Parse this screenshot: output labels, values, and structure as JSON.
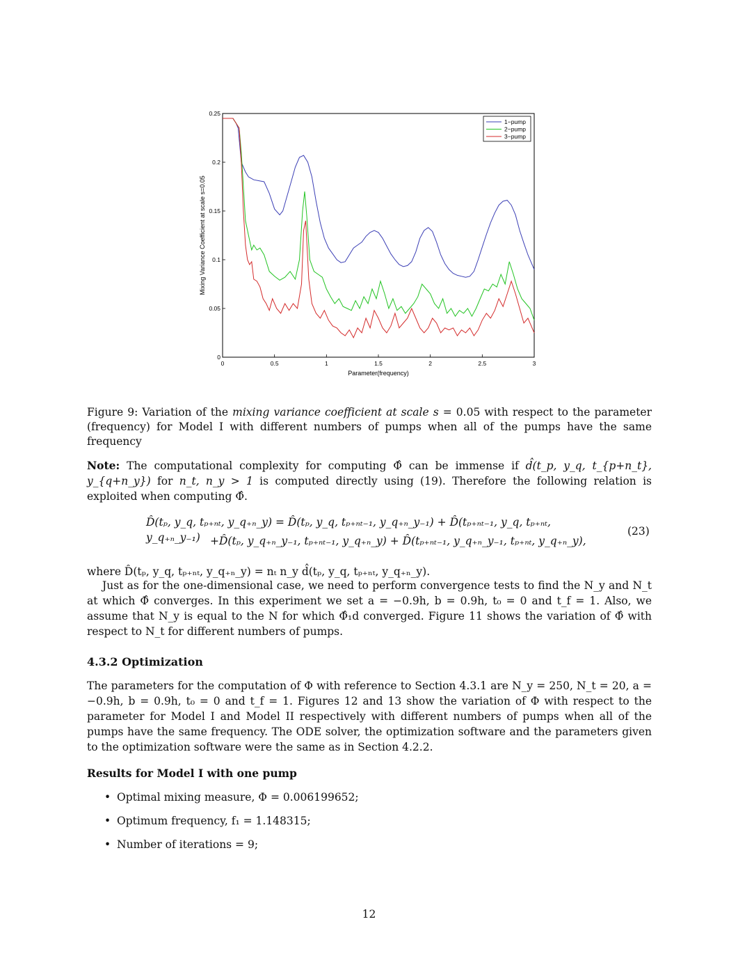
{
  "chart_data": {
    "type": "line",
    "title": "",
    "xlabel": "Parameter(frequency)",
    "ylabel": "Mixing Variance Coefficient at scale s=0.05",
    "xlim": [
      0,
      3
    ],
    "ylim": [
      0,
      0.25
    ],
    "xticks": [
      0,
      0.5,
      1,
      1.5,
      2,
      2.5,
      3
    ],
    "xtick_labels": [
      "0",
      "0.5",
      "1",
      "1.5",
      "2",
      "2.5",
      "3"
    ],
    "yticks": [
      0,
      0.05,
      0.1,
      0.15,
      0.2,
      0.25
    ],
    "ytick_labels": [
      "0",
      "0.05",
      "0.1",
      "0.15",
      "0.2",
      "0.25"
    ],
    "grid": false,
    "legend": "top-right",
    "series": [
      {
        "name": "1−pump",
        "color": "#3b3fb5",
        "x": [
          0,
          0.1,
          0.13,
          0.15,
          0.18,
          0.22,
          0.25,
          0.3,
          0.35,
          0.4,
          0.45,
          0.5,
          0.55,
          0.58,
          0.62,
          0.66,
          0.7,
          0.74,
          0.78,
          0.82,
          0.86,
          0.9,
          0.94,
          0.98,
          1.02,
          1.06,
          1.1,
          1.14,
          1.18,
          1.22,
          1.26,
          1.3,
          1.34,
          1.38,
          1.42,
          1.46,
          1.5,
          1.54,
          1.58,
          1.62,
          1.66,
          1.7,
          1.74,
          1.78,
          1.82,
          1.86,
          1.9,
          1.94,
          1.98,
          2.02,
          2.06,
          2.1,
          2.14,
          2.18,
          2.22,
          2.26,
          2.3,
          2.34,
          2.38,
          2.42,
          2.46,
          2.5,
          2.54,
          2.58,
          2.62,
          2.66,
          2.7,
          2.74,
          2.78,
          2.82,
          2.86,
          2.9,
          2.94,
          2.98,
          3.0
        ],
        "y": [
          0.245,
          0.245,
          0.24,
          0.235,
          0.2,
          0.19,
          0.185,
          0.182,
          0.181,
          0.18,
          0.168,
          0.152,
          0.146,
          0.15,
          0.165,
          0.18,
          0.195,
          0.205,
          0.207,
          0.2,
          0.185,
          0.16,
          0.138,
          0.122,
          0.112,
          0.106,
          0.1,
          0.097,
          0.098,
          0.105,
          0.112,
          0.115,
          0.118,
          0.124,
          0.128,
          0.13,
          0.128,
          0.122,
          0.114,
          0.106,
          0.1,
          0.095,
          0.093,
          0.094,
          0.098,
          0.108,
          0.122,
          0.13,
          0.133,
          0.129,
          0.118,
          0.105,
          0.096,
          0.09,
          0.086,
          0.084,
          0.083,
          0.082,
          0.083,
          0.088,
          0.1,
          0.113,
          0.126,
          0.138,
          0.148,
          0.156,
          0.16,
          0.161,
          0.156,
          0.146,
          0.13,
          0.117,
          0.105,
          0.095,
          0.09
        ]
      },
      {
        "name": "2−pump",
        "color": "#22c322",
        "x": [
          0,
          0.1,
          0.13,
          0.16,
          0.18,
          0.2,
          0.22,
          0.25,
          0.28,
          0.3,
          0.33,
          0.36,
          0.4,
          0.45,
          0.5,
          0.55,
          0.6,
          0.65,
          0.7,
          0.74,
          0.77,
          0.79,
          0.81,
          0.84,
          0.88,
          0.92,
          0.96,
          1.0,
          1.04,
          1.08,
          1.12,
          1.16,
          1.2,
          1.24,
          1.28,
          1.32,
          1.36,
          1.4,
          1.44,
          1.48,
          1.52,
          1.56,
          1.6,
          1.64,
          1.68,
          1.72,
          1.76,
          1.8,
          1.84,
          1.88,
          1.92,
          1.96,
          2.0,
          2.04,
          2.08,
          2.12,
          2.16,
          2.2,
          2.24,
          2.28,
          2.32,
          2.36,
          2.4,
          2.44,
          2.48,
          2.52,
          2.56,
          2.6,
          2.64,
          2.68,
          2.72,
          2.76,
          2.8,
          2.84,
          2.88,
          2.92,
          2.96,
          3.0
        ],
        "y": [
          0.245,
          0.245,
          0.24,
          0.235,
          0.21,
          0.175,
          0.14,
          0.125,
          0.11,
          0.115,
          0.11,
          0.112,
          0.105,
          0.088,
          0.083,
          0.079,
          0.082,
          0.088,
          0.08,
          0.1,
          0.15,
          0.17,
          0.145,
          0.1,
          0.088,
          0.085,
          0.082,
          0.07,
          0.062,
          0.055,
          0.06,
          0.052,
          0.05,
          0.048,
          0.058,
          0.05,
          0.062,
          0.055,
          0.07,
          0.06,
          0.078,
          0.065,
          0.05,
          0.06,
          0.048,
          0.052,
          0.045,
          0.05,
          0.055,
          0.062,
          0.075,
          0.07,
          0.065,
          0.055,
          0.05,
          0.06,
          0.045,
          0.05,
          0.042,
          0.048,
          0.045,
          0.05,
          0.042,
          0.05,
          0.06,
          0.07,
          0.068,
          0.075,
          0.072,
          0.085,
          0.075,
          0.098,
          0.085,
          0.07,
          0.06,
          0.055,
          0.05,
          0.038
        ]
      },
      {
        "name": "3−pump",
        "color": "#d42b2b",
        "x": [
          0,
          0.1,
          0.13,
          0.16,
          0.18,
          0.2,
          0.22,
          0.24,
          0.26,
          0.28,
          0.3,
          0.33,
          0.36,
          0.39,
          0.42,
          0.45,
          0.48,
          0.52,
          0.56,
          0.6,
          0.64,
          0.68,
          0.72,
          0.76,
          0.78,
          0.8,
          0.83,
          0.86,
          0.9,
          0.94,
          0.98,
          1.02,
          1.06,
          1.1,
          1.14,
          1.18,
          1.22,
          1.26,
          1.3,
          1.34,
          1.38,
          1.42,
          1.46,
          1.5,
          1.54,
          1.58,
          1.62,
          1.66,
          1.7,
          1.74,
          1.78,
          1.82,
          1.86,
          1.9,
          1.94,
          1.98,
          2.02,
          2.06,
          2.1,
          2.14,
          2.18,
          2.22,
          2.26,
          2.3,
          2.34,
          2.38,
          2.42,
          2.46,
          2.5,
          2.54,
          2.58,
          2.62,
          2.66,
          2.7,
          2.74,
          2.78,
          2.82,
          2.86,
          2.9,
          2.94,
          2.98,
          3.0
        ],
        "y": [
          0.245,
          0.245,
          0.24,
          0.235,
          0.2,
          0.15,
          0.115,
          0.1,
          0.095,
          0.098,
          0.08,
          0.078,
          0.072,
          0.06,
          0.055,
          0.048,
          0.06,
          0.05,
          0.045,
          0.055,
          0.048,
          0.055,
          0.05,
          0.075,
          0.13,
          0.14,
          0.08,
          0.055,
          0.045,
          0.04,
          0.048,
          0.038,
          0.032,
          0.03,
          0.025,
          0.022,
          0.028,
          0.02,
          0.03,
          0.025,
          0.04,
          0.03,
          0.048,
          0.04,
          0.03,
          0.025,
          0.032,
          0.045,
          0.03,
          0.035,
          0.04,
          0.05,
          0.04,
          0.03,
          0.025,
          0.03,
          0.04,
          0.035,
          0.025,
          0.03,
          0.028,
          0.03,
          0.022,
          0.028,
          0.025,
          0.03,
          0.022,
          0.028,
          0.038,
          0.045,
          0.04,
          0.048,
          0.06,
          0.052,
          0.065,
          0.078,
          0.065,
          0.05,
          0.035,
          0.04,
          0.03,
          0.025
        ]
      }
    ]
  },
  "caption": {
    "prefix": "Figure 9:  Variation of the ",
    "italic": "mixing variance coefficient at scale s",
    "suffix": " = 0.05 with respect to the parameter (frequency) for Model I with different numbers of pumps when all of the pumps have the same frequency"
  },
  "note": {
    "label": "Note:",
    "text1": " The computational complexity for computing ",
    "phi_hat": "Φ̂",
    "text2": " can be immense if ",
    "dterm": "d̂(t_p, y_q, t_{p+n_t}, y_{q+n_y})",
    "text3": " for ",
    "cond": "n_t, n_y > 1",
    "text4": " is computed directly using (19). Therefore the following relation is exploited when computing ",
    "text5": "."
  },
  "equation": {
    "line1": "D̂(tₚ, y_q, tₚ₊ₙₜ, y_q₊ₙ_y) = D̂(tₚ, y_q, tₚ₊ₙₜ₋₁, y_q₊ₙ_y₋₁) + D̂(tₚ₊ₙₜ₋₁, y_q, tₚ₊ₙₜ, y_q₊ₙ_y₋₁)",
    "line2": "+D̂(tₚ, y_q₊ₙ_y₋₁, tₚ₊ₙₜ₋₁, y_q₊ₙ_y) + D̂(tₚ₊ₙₜ₋₁, y_q₊ₙ_y₋₁, tₚ₊ₙₜ, y_q₊ₙ_y),",
    "number": "(23)"
  },
  "where_line": "where D̂(tₚ, y_q, tₚ₊ₙₜ, y_q₊ₙ_y) = nₜ n_y d̂(tₚ, y_q, tₚ₊ₙₜ, y_q₊ₙ_y).",
  "para1": "Just as for the one-dimensional case, we need to perform convergence tests to find the N_y and N_t at which Φ̂ converges. In this experiment we set a = −0.9h, b = 0.9h, t₀ = 0 and t_f = 1. Also, we assume that N_y is equal to the N for which Φ̂₁d converged. Figure 11 shows the variation of Φ̂ with respect to N_t for different numbers of pumps.",
  "section_heading": "4.3.2   Optimization",
  "para2": "The parameters for the computation of Φ with reference to Section 4.3.1 are N_y = 250, N_t = 20, a = −0.9h, b = 0.9h, t₀ = 0 and t_f = 1. Figures 12 and 13 show the variation of Φ with respect to the parameter for Model I and Model II respectively with different numbers of pumps when all of the pumps have the same frequency. The ODE solver, the optimization software and the parameters given to the optimization software were the same as in Section 4.2.2.",
  "results_heading": "Results for Model I with one pump",
  "bullets": [
    "Optimal mixing measure, Φ = 0.006199652;",
    "Optimum frequency, f₁ = 1.148315;",
    "Number of iterations = 9;"
  ],
  "page_number": "12"
}
